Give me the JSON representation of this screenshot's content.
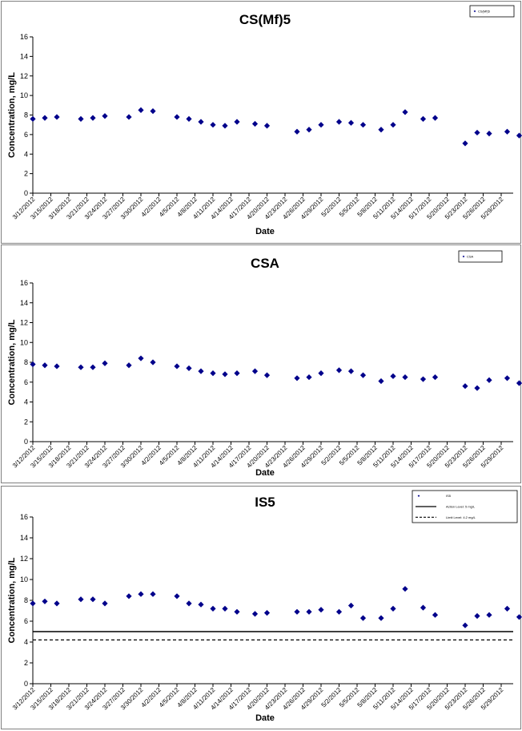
{
  "colors": {
    "marker": "#00008B",
    "line": "#000000"
  },
  "chart_data": [
    {
      "type": "scatter",
      "title": "CS(Mf)5",
      "xlabel": "Date",
      "ylabel": "Concentration, mg/L",
      "ylim": [
        0,
        16
      ],
      "yticks": [
        0,
        2,
        4,
        6,
        8,
        10,
        12,
        14,
        16
      ],
      "xrange": [
        "3/12/2012",
        "5/31/2012"
      ],
      "xtick_labels": [
        "3/12/2012",
        "3/15/2012",
        "3/18/2012",
        "3/21/2012",
        "3/24/2012",
        "3/27/2012",
        "3/30/2012",
        "4/2/2012",
        "4/5/2012",
        "4/8/2012",
        "4/11/2012",
        "4/14/2012",
        "4/17/2012",
        "4/20/2012",
        "4/23/2012",
        "4/26/2012",
        "4/29/2012",
        "5/2/2012",
        "5/5/2012",
        "5/8/2012",
        "5/11/2012",
        "5/14/2012",
        "5/17/2012",
        "5/20/2012",
        "5/23/2012",
        "5/26/2012",
        "5/29/2012"
      ],
      "legend": {
        "position": "top-right",
        "entries": [
          {
            "label": "CS(Mf)5",
            "symbol": "marker"
          }
        ]
      },
      "series": [
        {
          "name": "CS(Mf)5",
          "points": [
            {
              "x": "3/12/2012",
              "y": 7.6
            },
            {
              "x": "3/14/2012",
              "y": 7.7
            },
            {
              "x": "3/16/2012",
              "y": 7.8
            },
            {
              "x": "3/20/2012",
              "y": 7.6
            },
            {
              "x": "3/22/2012",
              "y": 7.7
            },
            {
              "x": "3/24/2012",
              "y": 7.9
            },
            {
              "x": "3/28/2012",
              "y": 7.8
            },
            {
              "x": "3/30/2012",
              "y": 8.5
            },
            {
              "x": "4/1/2012",
              "y": 8.4
            },
            {
              "x": "4/5/2012",
              "y": 7.8
            },
            {
              "x": "4/7/2012",
              "y": 7.6
            },
            {
              "x": "4/9/2012",
              "y": 7.3
            },
            {
              "x": "4/11/2012",
              "y": 7.0
            },
            {
              "x": "4/13/2012",
              "y": 6.9
            },
            {
              "x": "4/15/2012",
              "y": 7.3
            },
            {
              "x": "4/18/2012",
              "y": 7.1
            },
            {
              "x": "4/20/2012",
              "y": 6.9
            },
            {
              "x": "4/25/2012",
              "y": 6.3
            },
            {
              "x": "4/27/2012",
              "y": 6.5
            },
            {
              "x": "4/29/2012",
              "y": 7.0
            },
            {
              "x": "5/2/2012",
              "y": 7.3
            },
            {
              "x": "5/4/2012",
              "y": 7.2
            },
            {
              "x": "5/6/2012",
              "y": 7.0
            },
            {
              "x": "5/9/2012",
              "y": 6.5
            },
            {
              "x": "5/11/2012",
              "y": 7.0
            },
            {
              "x": "5/13/2012",
              "y": 8.3
            },
            {
              "x": "5/16/2012",
              "y": 7.6
            },
            {
              "x": "5/18/2012",
              "y": 7.7
            },
            {
              "x": "5/23/2012",
              "y": 5.1
            },
            {
              "x": "5/25/2012",
              "y": 6.2
            },
            {
              "x": "5/27/2012",
              "y": 6.1
            },
            {
              "x": "5/30/2012",
              "y": 6.3
            },
            {
              "x": "6/1/2012",
              "y": 5.9
            }
          ]
        }
      ]
    },
    {
      "type": "scatter",
      "title": "CSA",
      "xlabel": "Date",
      "ylabel": "Concentration, mg/L",
      "ylim": [
        0,
        16
      ],
      "yticks": [
        0,
        2,
        4,
        6,
        8,
        10,
        12,
        14,
        16
      ],
      "xrange": [
        "3/12/2012",
        "5/31/2012"
      ],
      "xtick_labels": [
        "3/12/2012",
        "3/15/2012",
        "3/18/2012",
        "3/21/2012",
        "3/24/2012",
        "3/27/2012",
        "3/30/2012",
        "4/2/2012",
        "4/5/2012",
        "4/8/2012",
        "4/11/2012",
        "4/14/2012",
        "4/17/2012",
        "4/20/2012",
        "4/23/2012",
        "4/26/2012",
        "4/29/2012",
        "5/2/2012",
        "5/5/2012",
        "5/8/2012",
        "5/11/2012",
        "5/14/2012",
        "5/17/2012",
        "5/20/2012",
        "5/23/2012",
        "5/26/2012",
        "5/29/2012"
      ],
      "legend": {
        "position": "top-right",
        "entries": [
          {
            "label": "CSA",
            "symbol": "marker"
          }
        ]
      },
      "series": [
        {
          "name": "CSA",
          "points": [
            {
              "x": "3/12/2012",
              "y": 7.8
            },
            {
              "x": "3/14/2012",
              "y": 7.7
            },
            {
              "x": "3/16/2012",
              "y": 7.6
            },
            {
              "x": "3/20/2012",
              "y": 7.5
            },
            {
              "x": "3/22/2012",
              "y": 7.5
            },
            {
              "x": "3/24/2012",
              "y": 7.9
            },
            {
              "x": "3/28/2012",
              "y": 7.7
            },
            {
              "x": "3/30/2012",
              "y": 8.4
            },
            {
              "x": "4/1/2012",
              "y": 8.0
            },
            {
              "x": "4/5/2012",
              "y": 7.6
            },
            {
              "x": "4/7/2012",
              "y": 7.4
            },
            {
              "x": "4/9/2012",
              "y": 7.1
            },
            {
              "x": "4/11/2012",
              "y": 6.9
            },
            {
              "x": "4/13/2012",
              "y": 6.8
            },
            {
              "x": "4/15/2012",
              "y": 6.9
            },
            {
              "x": "4/18/2012",
              "y": 7.1
            },
            {
              "x": "4/20/2012",
              "y": 6.7
            },
            {
              "x": "4/25/2012",
              "y": 6.4
            },
            {
              "x": "4/27/2012",
              "y": 6.5
            },
            {
              "x": "4/29/2012",
              "y": 6.9
            },
            {
              "x": "5/2/2012",
              "y": 7.2
            },
            {
              "x": "5/4/2012",
              "y": 7.1
            },
            {
              "x": "5/6/2012",
              "y": 6.7
            },
            {
              "x": "5/9/2012",
              "y": 6.1
            },
            {
              "x": "5/11/2012",
              "y": 6.6
            },
            {
              "x": "5/13/2012",
              "y": 6.5
            },
            {
              "x": "5/16/2012",
              "y": 6.3
            },
            {
              "x": "5/18/2012",
              "y": 6.5
            },
            {
              "x": "5/23/2012",
              "y": 5.6
            },
            {
              "x": "5/25/2012",
              "y": 5.4
            },
            {
              "x": "5/27/2012",
              "y": 6.2
            },
            {
              "x": "5/30/2012",
              "y": 6.4
            },
            {
              "x": "6/1/2012",
              "y": 5.9
            }
          ]
        }
      ]
    },
    {
      "type": "scatter",
      "title": "IS5",
      "xlabel": "Date",
      "ylabel": "Concentration, mg/L",
      "ylim": [
        0,
        16
      ],
      "yticks": [
        0,
        2,
        4,
        6,
        8,
        10,
        12,
        14,
        16
      ],
      "xrange": [
        "3/12/2012",
        "5/31/2012"
      ],
      "xtick_labels": [
        "3/12/2012",
        "3/15/2012",
        "3/18/2012",
        "3/21/2012",
        "3/24/2012",
        "3/27/2012",
        "3/30/2012",
        "4/2/2012",
        "4/5/2012",
        "4/8/2012",
        "4/11/2012",
        "4/14/2012",
        "4/17/2012",
        "4/20/2012",
        "4/23/2012",
        "4/26/2012",
        "4/29/2012",
        "5/2/2012",
        "5/5/2012",
        "5/8/2012",
        "5/11/2012",
        "5/14/2012",
        "5/17/2012",
        "5/20/2012",
        "5/23/2012",
        "5/26/2012",
        "5/29/2012"
      ],
      "legend": {
        "position": "top-right",
        "entries": [
          {
            "label": "IS5",
            "symbol": "marker"
          },
          {
            "label": "Action Level: 5 mg/L",
            "symbol": "solid"
          },
          {
            "label": "Limit Level: 4.2 mg/L",
            "symbol": "dashed"
          }
        ]
      },
      "reference_lines": [
        {
          "name": "Action Level: 5 mg/L",
          "y": 5.0,
          "style": "solid"
        },
        {
          "name": "Limit Level: 4.2 mg/L",
          "y": 4.2,
          "style": "dashed"
        }
      ],
      "series": [
        {
          "name": "IS5",
          "points": [
            {
              "x": "3/12/2012",
              "y": 7.7
            },
            {
              "x": "3/14/2012",
              "y": 7.9
            },
            {
              "x": "3/16/2012",
              "y": 7.7
            },
            {
              "x": "3/20/2012",
              "y": 8.1
            },
            {
              "x": "3/22/2012",
              "y": 8.1
            },
            {
              "x": "3/24/2012",
              "y": 7.7
            },
            {
              "x": "3/28/2012",
              "y": 8.4
            },
            {
              "x": "3/30/2012",
              "y": 8.6
            },
            {
              "x": "4/1/2012",
              "y": 8.6
            },
            {
              "x": "4/5/2012",
              "y": 8.4
            },
            {
              "x": "4/7/2012",
              "y": 7.7
            },
            {
              "x": "4/9/2012",
              "y": 7.6
            },
            {
              "x": "4/11/2012",
              "y": 7.2
            },
            {
              "x": "4/13/2012",
              "y": 7.2
            },
            {
              "x": "4/15/2012",
              "y": 6.9
            },
            {
              "x": "4/18/2012",
              "y": 6.7
            },
            {
              "x": "4/20/2012",
              "y": 6.8
            },
            {
              "x": "4/25/2012",
              "y": 6.9
            },
            {
              "x": "4/27/2012",
              "y": 6.9
            },
            {
              "x": "4/29/2012",
              "y": 7.1
            },
            {
              "x": "5/2/2012",
              "y": 6.9
            },
            {
              "x": "5/4/2012",
              "y": 7.5
            },
            {
              "x": "5/6/2012",
              "y": 6.3
            },
            {
              "x": "5/9/2012",
              "y": 6.3
            },
            {
              "x": "5/11/2012",
              "y": 7.2
            },
            {
              "x": "5/13/2012",
              "y": 9.1
            },
            {
              "x": "5/16/2012",
              "y": 7.3
            },
            {
              "x": "5/18/2012",
              "y": 6.6
            },
            {
              "x": "5/23/2012",
              "y": 5.6
            },
            {
              "x": "5/25/2012",
              "y": 6.5
            },
            {
              "x": "5/27/2012",
              "y": 6.6
            },
            {
              "x": "5/30/2012",
              "y": 7.2
            },
            {
              "x": "6/1/2012",
              "y": 6.4
            }
          ]
        }
      ]
    }
  ]
}
